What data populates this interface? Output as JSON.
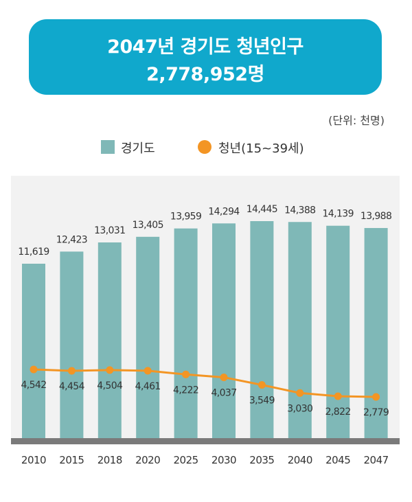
{
  "banner": {
    "line1": "2047년 경기도 청년인구",
    "line2": "2,778,952명"
  },
  "unit_note": "(단위: 천명)",
  "colors": {
    "banner": "#10a8cc",
    "bar": "#7fb8b7",
    "line": "#f39524",
    "baseline": "#7a7a7a"
  },
  "chart_data": {
    "type": "bar",
    "categories": [
      "2010",
      "2015",
      "2018",
      "2020",
      "2025",
      "2030",
      "2035",
      "2040",
      "2045",
      "2047"
    ],
    "series": [
      {
        "name": "경기도",
        "type": "bar",
        "values": [
          11619,
          12423,
          13031,
          13405,
          13959,
          14294,
          14445,
          14388,
          14139,
          13988
        ],
        "labels": [
          "11,619",
          "12,423",
          "13,031",
          "13,405",
          "13,959",
          "14,294",
          "14,445",
          "14,388",
          "14,139",
          "13,988"
        ]
      },
      {
        "name": "청년(15~39세)",
        "type": "line",
        "values": [
          4542,
          4454,
          4504,
          4461,
          4222,
          4037,
          3549,
          3030,
          2822,
          2779
        ],
        "labels": [
          "4,542",
          "4,454",
          "4,504",
          "4,461",
          "4,222",
          "4,037",
          "3,549",
          "3,030",
          "2,822",
          "2,779"
        ]
      }
    ],
    "title": "2047년 경기도 청년인구 2,778,952명",
    "unit": "(단위: 천명)",
    "legend": [
      "경기도",
      "청년(15~39세)"
    ],
    "legend_position": "top-center",
    "ylim": [
      0,
      15000
    ]
  }
}
